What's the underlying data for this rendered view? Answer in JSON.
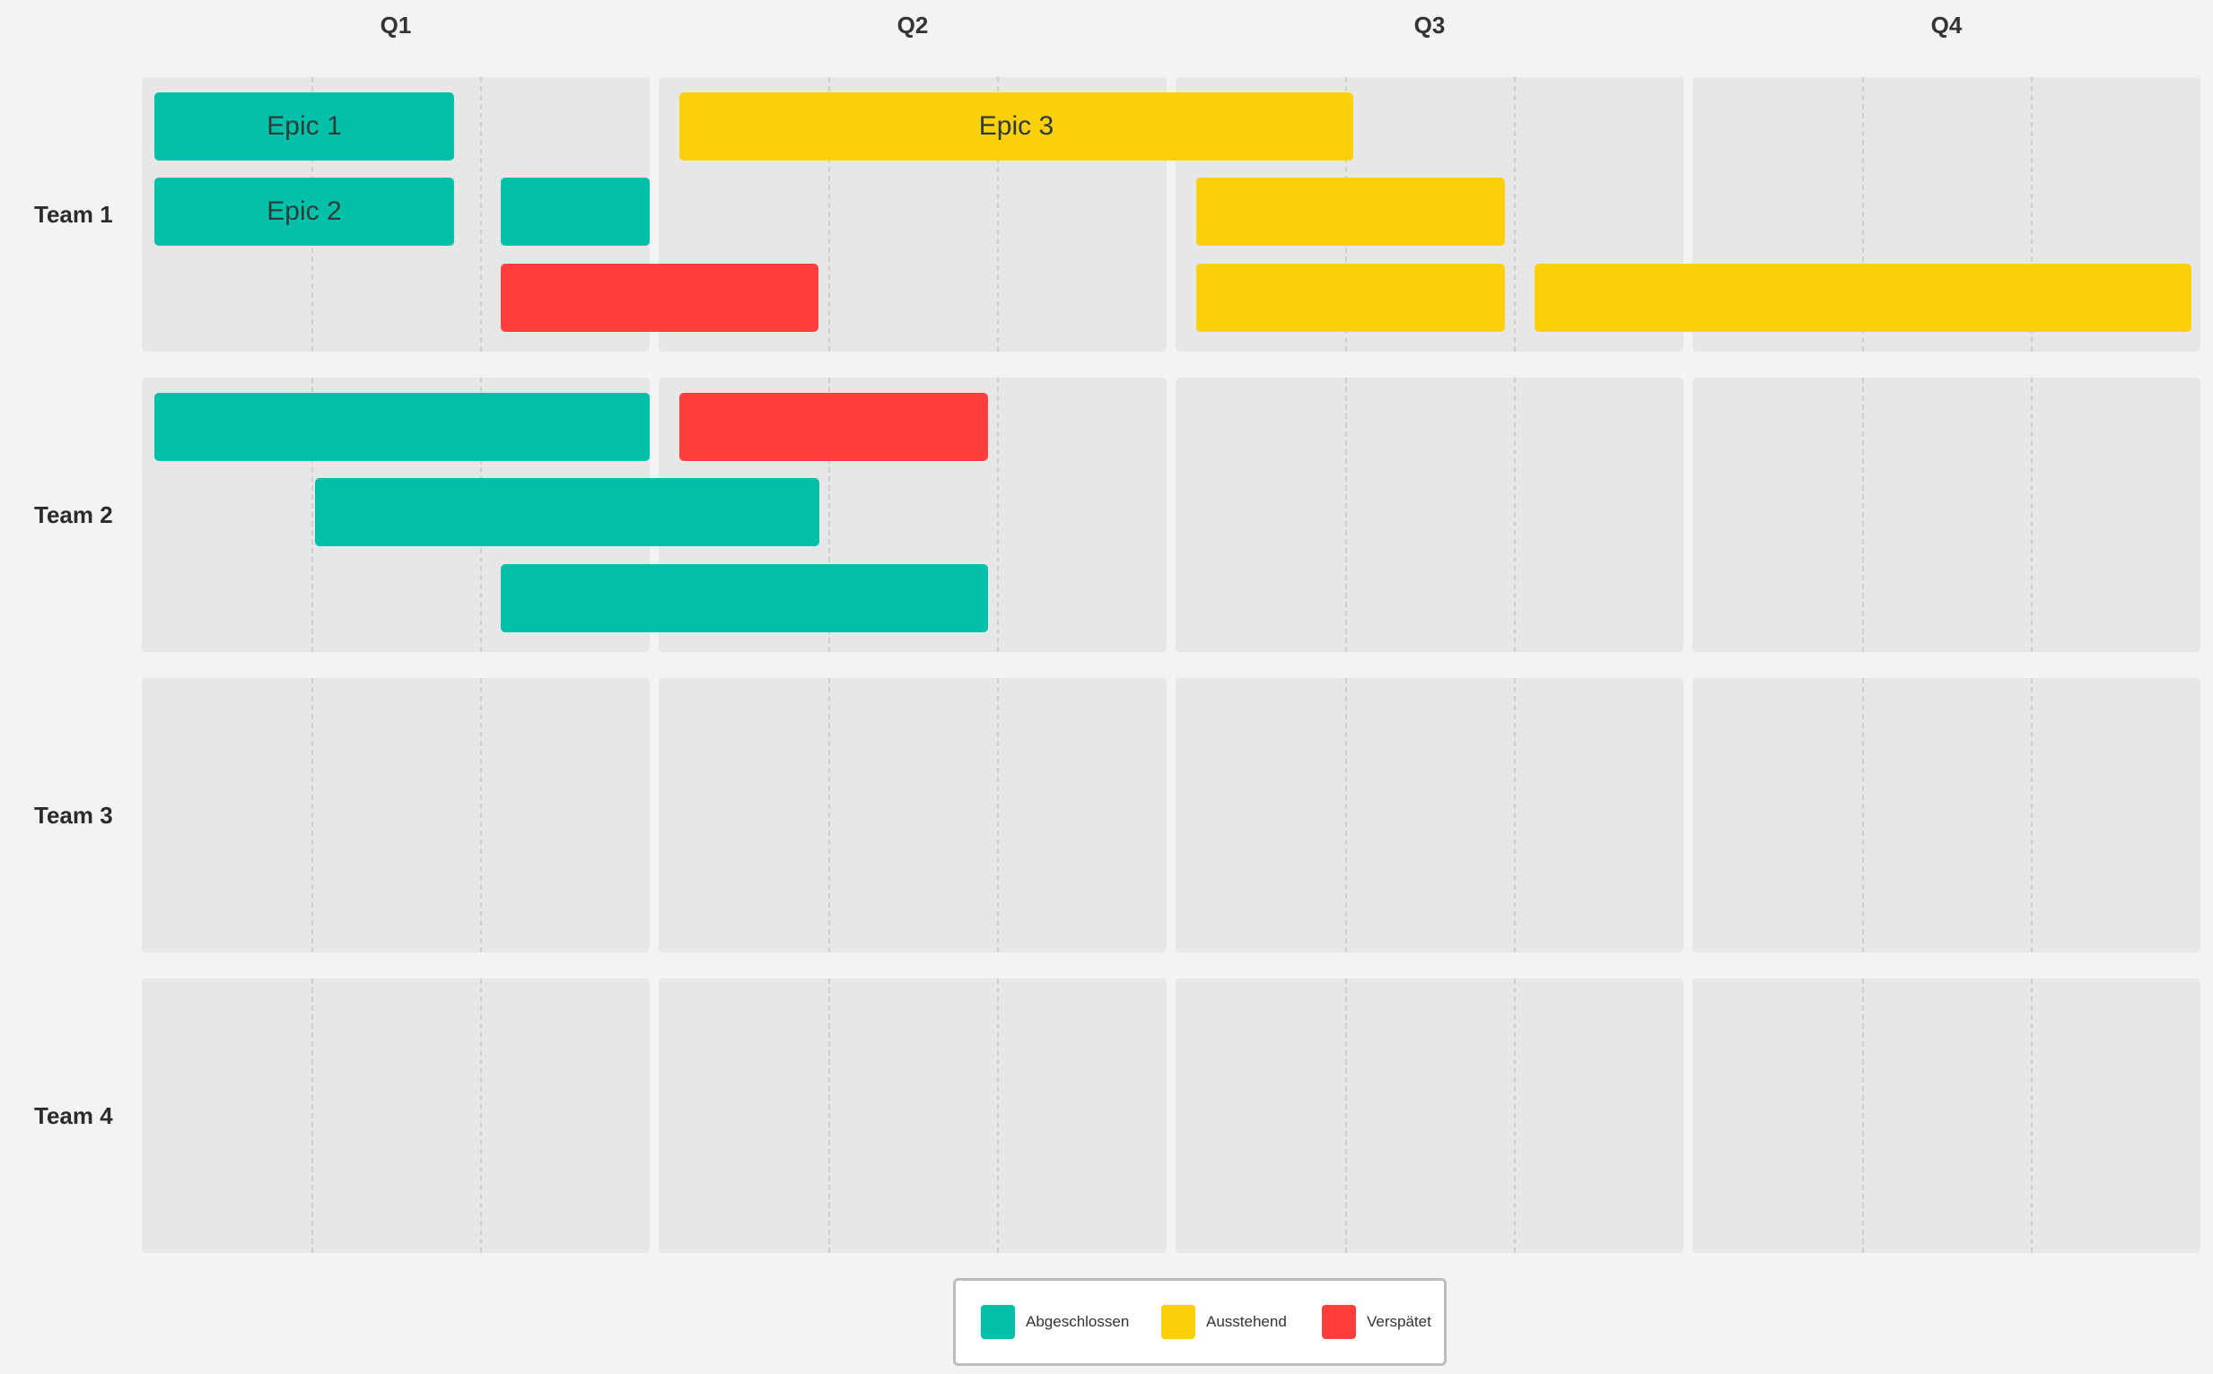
{
  "chart_data": {
    "type": "gantt",
    "columns": [
      "Q1",
      "Q2",
      "Q3",
      "Q4"
    ],
    "subdivisions_per_column": 3,
    "rows": [
      "Team 1",
      "Team 2",
      "Team 3",
      "Team 4"
    ],
    "legend": [
      {
        "key": "done",
        "label": "Abgeschlossen",
        "color": "#03c1a9"
      },
      {
        "key": "pending",
        "label": "Ausstehend",
        "color": "#fcd00d"
      },
      {
        "key": "late",
        "label": "Verspätet",
        "color": "#ff3e3e"
      }
    ],
    "bars": [
      {
        "row": 0,
        "lane": 0,
        "start": 0.0,
        "end": 1.9,
        "status": "done",
        "label": "Epic 1"
      },
      {
        "row": 0,
        "lane": 0,
        "start": 3.1,
        "end": 7.1,
        "status": "pending",
        "label": "Epic 3"
      },
      {
        "row": 0,
        "lane": 1,
        "start": 0.0,
        "end": 1.9,
        "status": "done",
        "label": "Epic 2"
      },
      {
        "row": 0,
        "lane": 1,
        "start": 2.1,
        "end": 3.0,
        "status": "done",
        "label": ""
      },
      {
        "row": 0,
        "lane": 1,
        "start": 6.1,
        "end": 8.0,
        "status": "pending",
        "label": ""
      },
      {
        "row": 0,
        "lane": 2,
        "start": 2.1,
        "end": 4.0,
        "status": "late",
        "label": ""
      },
      {
        "row": 0,
        "lane": 2,
        "start": 6.1,
        "end": 8.0,
        "status": "pending",
        "label": ""
      },
      {
        "row": 0,
        "lane": 2,
        "start": 8.1,
        "end": 12.0,
        "status": "pending",
        "label": ""
      },
      {
        "row": 1,
        "lane": 0,
        "start": 0.0,
        "end": 3.0,
        "status": "done",
        "label": ""
      },
      {
        "row": 1,
        "lane": 0,
        "start": 3.1,
        "end": 5.0,
        "status": "late",
        "label": ""
      },
      {
        "row": 1,
        "lane": 1,
        "start": 1.0,
        "end": 4.0,
        "status": "done",
        "label": ""
      },
      {
        "row": 1,
        "lane": 2,
        "start": 2.1,
        "end": 5.0,
        "status": "done",
        "label": ""
      }
    ]
  }
}
